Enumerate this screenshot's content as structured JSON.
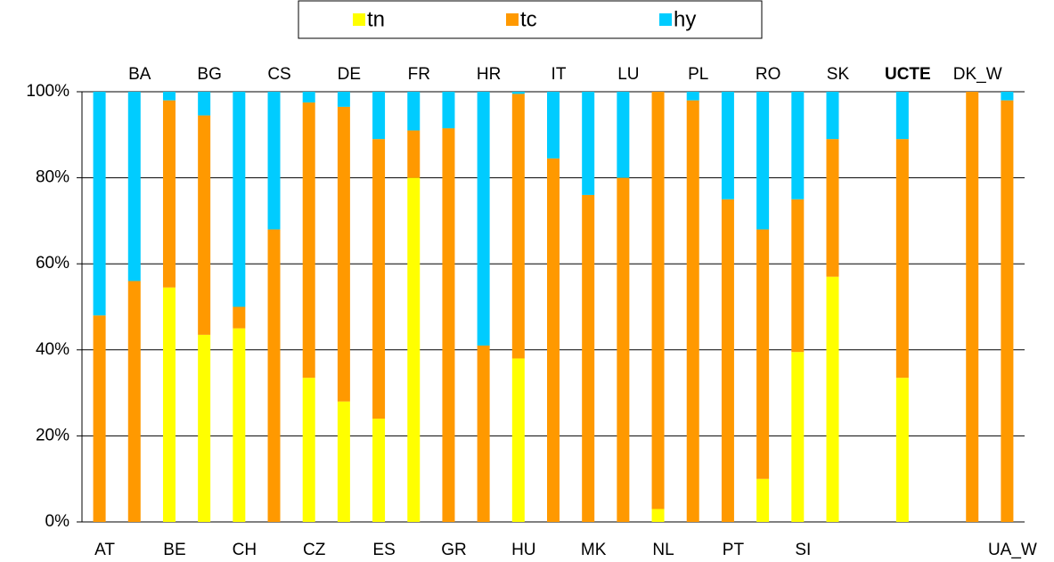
{
  "chart_data": {
    "type": "stacked_bar",
    "categories": [
      "AT",
      "BA",
      "BE",
      "BG",
      "CH",
      "CS",
      "CZ",
      "DE",
      "ES",
      "FR",
      "GR",
      "HR",
      "HU",
      "IT",
      "MK",
      "LU",
      "NL",
      "PL",
      "PT",
      "RO",
      "SI",
      "SK",
      null,
      "UCTE",
      null,
      "DK_W",
      "UA_W"
    ],
    "series": [
      {
        "name": "tn",
        "color": "#ffff00",
        "values": [
          0,
          0,
          54.5,
          43.5,
          45,
          0,
          33.5,
          28,
          24,
          80,
          0,
          0,
          38,
          0,
          0,
          0,
          3,
          0,
          0,
          10,
          39.5,
          57,
          null,
          33.5,
          null,
          0,
          0
        ]
      },
      {
        "name": "tc",
        "color": "#ff9900",
        "values": [
          48,
          56,
          43.5,
          51,
          5,
          68,
          64,
          68.5,
          65,
          11,
          91.5,
          41,
          61.5,
          84.5,
          76,
          80,
          97,
          98,
          75,
          58,
          35.5,
          32,
          null,
          55.5,
          null,
          100,
          98
        ]
      },
      {
        "name": "hy",
        "color": "#00ccff",
        "values": [
          52,
          44,
          2,
          5.5,
          50,
          32,
          2.5,
          3.5,
          11,
          9,
          8.5,
          59,
          0.5,
          15.5,
          24,
          20,
          0,
          2,
          25,
          32,
          25,
          11,
          null,
          11,
          null,
          0,
          2
        ]
      }
    ],
    "ylim": [
      0,
      100
    ],
    "yticks": [
      {
        "value": 0,
        "label": "0%"
      },
      {
        "value": 20,
        "label": "20%"
      },
      {
        "value": 40,
        "label": "40%"
      },
      {
        "value": 60,
        "label": "60%"
      },
      {
        "value": 80,
        "label": "80%"
      },
      {
        "value": 100,
        "label": "100%"
      }
    ],
    "grid": true,
    "legend": "top"
  }
}
